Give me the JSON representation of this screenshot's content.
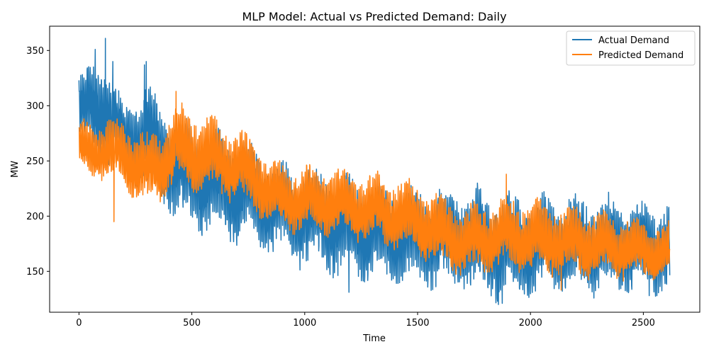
{
  "chart_data": {
    "type": "line",
    "title": "MLP Model: Actual vs Predicted Demand: Daily",
    "xlabel": "Time",
    "ylabel": "MW",
    "xlim": [
      -130,
      2750
    ],
    "ylim": [
      113,
      372
    ],
    "xticks": [
      0,
      500,
      1000,
      1500,
      2000,
      2500
    ],
    "yticks": [
      150,
      200,
      250,
      300,
      350
    ],
    "grid": false,
    "legend_position": "top-right",
    "n_points": 2618,
    "series": [
      {
        "name": "Actual Demand",
        "color": "#1f77b4",
        "trend": [
          {
            "x": 0,
            "mean": 300,
            "amp": 28
          },
          {
            "x": 120,
            "mean": 295,
            "amp": 45
          },
          {
            "x": 200,
            "mean": 268,
            "amp": 28
          },
          {
            "x": 300,
            "mean": 270,
            "amp": 45
          },
          {
            "x": 450,
            "mean": 240,
            "amp": 45
          },
          {
            "x": 700,
            "mean": 225,
            "amp": 45
          },
          {
            "x": 900,
            "mean": 205,
            "amp": 40
          },
          {
            "x": 1100,
            "mean": 195,
            "amp": 45
          },
          {
            "x": 1300,
            "mean": 185,
            "amp": 42
          },
          {
            "x": 1500,
            "mean": 180,
            "amp": 42
          },
          {
            "x": 1700,
            "mean": 180,
            "amp": 45
          },
          {
            "x": 1900,
            "mean": 172,
            "amp": 45
          },
          {
            "x": 2200,
            "mean": 175,
            "amp": 42
          },
          {
            "x": 2617,
            "mean": 172,
            "amp": 38
          }
        ],
        "extremes": [
          {
            "x": 0,
            "y": 323
          },
          {
            "x": 72,
            "y": 351
          },
          {
            "x": 117,
            "y": 361
          },
          {
            "x": 150,
            "y": 340
          },
          {
            "x": 290,
            "y": 337
          },
          {
            "x": 298,
            "y": 340
          },
          {
            "x": 1196,
            "y": 131
          },
          {
            "x": 1858,
            "y": 120
          },
          {
            "x": 1875,
            "y": 121
          },
          {
            "x": 2526,
            "y": 128
          },
          {
            "x": 2560,
            "y": 128
          }
        ]
      },
      {
        "name": "Predicted Demand",
        "color": "#ff7f0e",
        "trend": [
          {
            "x": 0,
            "mean": 262,
            "amp": 22
          },
          {
            "x": 200,
            "mean": 255,
            "amp": 30
          },
          {
            "x": 300,
            "mean": 238,
            "amp": 32
          },
          {
            "x": 450,
            "mean": 262,
            "amp": 35
          },
          {
            "x": 700,
            "mean": 245,
            "amp": 32
          },
          {
            "x": 900,
            "mean": 215,
            "amp": 28
          },
          {
            "x": 1100,
            "mean": 212,
            "amp": 30
          },
          {
            "x": 1300,
            "mean": 205,
            "amp": 30
          },
          {
            "x": 1500,
            "mean": 195,
            "amp": 32
          },
          {
            "x": 1700,
            "mean": 175,
            "amp": 30
          },
          {
            "x": 1900,
            "mean": 182,
            "amp": 32
          },
          {
            "x": 2200,
            "mean": 175,
            "amp": 30
          },
          {
            "x": 2617,
            "mean": 165,
            "amp": 25
          }
        ],
        "extremes": [
          {
            "x": 155,
            "y": 195
          },
          {
            "x": 430,
            "y": 313
          },
          {
            "x": 1893,
            "y": 238
          },
          {
            "x": 2136,
            "y": 133
          }
        ]
      }
    ]
  }
}
